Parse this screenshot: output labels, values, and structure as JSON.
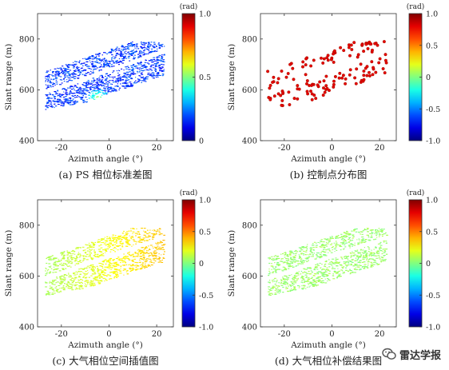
{
  "chart_data": [
    {
      "type": "scatter",
      "panel": "a",
      "caption": "(a) PS 相位标准差图",
      "xlabel": "Azimuth angle (°)",
      "ylabel": "Slant range (m)",
      "xlim": [
        -30,
        27
      ],
      "ylim": [
        400,
        900
      ],
      "xticks": [
        "-20",
        "0",
        "20"
      ],
      "yticks": [
        "400",
        "600",
        "800"
      ],
      "colorbar": {
        "unit": "(rad)",
        "range": [
          0,
          1
        ],
        "ticks": [
          "1.0",
          "0.5",
          "0"
        ]
      },
      "description_values": {
        "typical": 0.12,
        "hotspot_value": 0.45
      }
    },
    {
      "type": "scatter",
      "panel": "b",
      "caption": "(b) 控制点分布图",
      "xlabel": "Azimuth angle (°)",
      "ylabel": "Slant range (m)",
      "xlim": [
        -30,
        27
      ],
      "ylim": [
        400,
        900
      ],
      "xticks": [
        "-20",
        "0",
        "20"
      ],
      "yticks": [
        "400",
        "600",
        "800"
      ],
      "colorbar": {
        "unit": "(rad)",
        "range": [
          -1,
          1
        ],
        "ticks": [
          "1.0",
          "0.5",
          "0",
          "-0.5",
          "-1.0"
        ]
      },
      "description_values": {
        "marker_value": 0.8
      }
    },
    {
      "type": "scatter",
      "panel": "c",
      "caption": "(c)  大气相位空间插值图",
      "xlabel": "Azimuth angle (°)",
      "ylabel": "Slant range (m)",
      "xlim": [
        -30,
        27
      ],
      "ylim": [
        400,
        900
      ],
      "xticks": [
        "-20",
        "0",
        "20"
      ],
      "yticks": [
        "400",
        "600",
        "800"
      ],
      "colorbar": {
        "unit": "(rad)",
        "range": [
          -1,
          1
        ],
        "ticks": [
          "1.0",
          "0.5",
          "0",
          "-0.5",
          "-1.0"
        ]
      },
      "description_values": {
        "low": 0.05,
        "high": 0.35
      }
    },
    {
      "type": "scatter",
      "panel": "d",
      "caption": "(d) 大气相位补偿结果图",
      "xlabel": "Azimuth angle (°)",
      "ylabel": "Slant range (m)",
      "xlim": [
        -30,
        27
      ],
      "ylim": [
        400,
        900
      ],
      "xticks": [
        "-20",
        "0",
        "20"
      ],
      "yticks": [
        "400",
        "600",
        "800"
      ],
      "colorbar": {
        "unit": "(rad)",
        "range": [
          -1,
          1
        ],
        "ticks": [
          "1.0",
          "0.5",
          "0",
          "-0.5",
          "-1.0"
        ]
      },
      "description_values": {
        "typical": 0.05
      }
    }
  ],
  "watermark": {
    "text": "雷达学报"
  }
}
